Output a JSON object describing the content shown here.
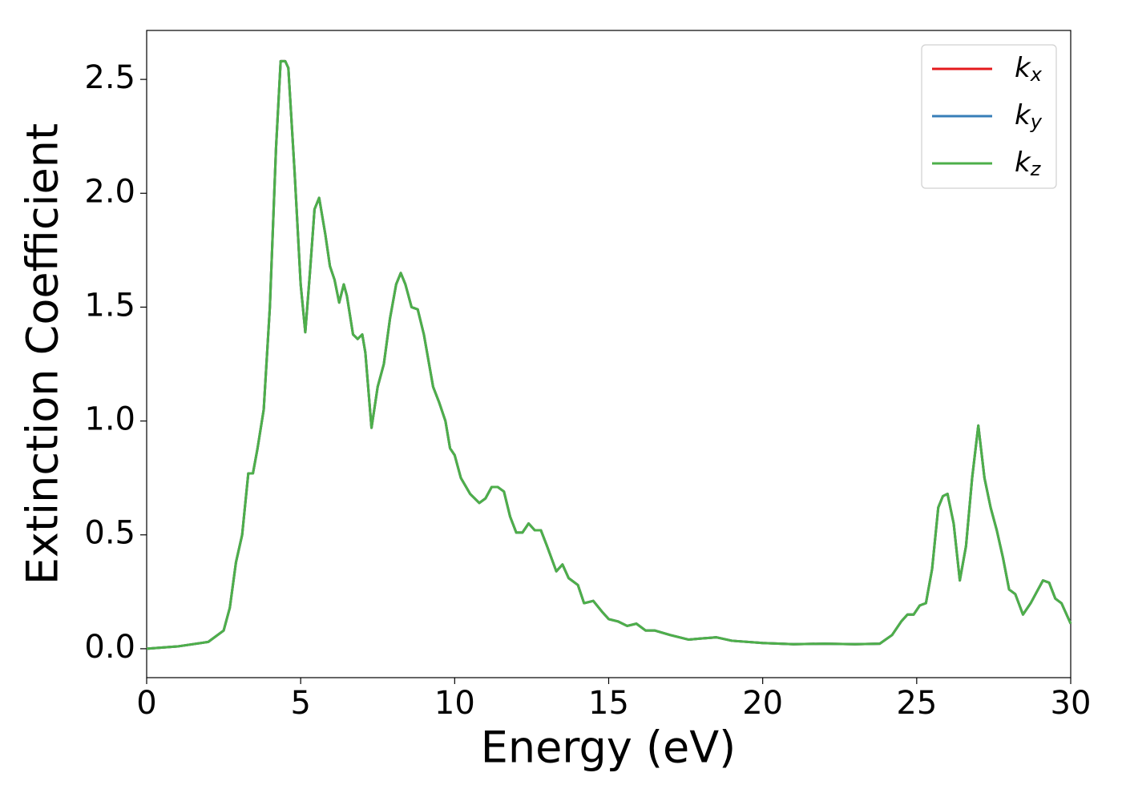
{
  "chart_data": {
    "type": "line",
    "xlabel": "Energy (eV)",
    "ylabel": "Extinction Coefficient",
    "x": [
      0,
      1,
      2,
      2.5,
      2.7,
      2.9,
      3.1,
      3.3,
      3.45,
      3.6,
      3.8,
      4.0,
      4.2,
      4.35,
      4.5,
      4.6,
      4.8,
      5.0,
      5.15,
      5.3,
      5.45,
      5.6,
      5.8,
      5.95,
      6.1,
      6.25,
      6.4,
      6.5,
      6.7,
      6.85,
      7.0,
      7.1,
      7.3,
      7.5,
      7.7,
      7.9,
      8.1,
      8.25,
      8.4,
      8.6,
      8.8,
      9.0,
      9.3,
      9.5,
      9.7,
      9.85,
      10.0,
      10.2,
      10.5,
      10.8,
      11.0,
      11.2,
      11.4,
      11.6,
      11.8,
      12.0,
      12.2,
      12.4,
      12.6,
      12.8,
      13.0,
      13.3,
      13.5,
      13.7,
      14.0,
      14.2,
      14.5,
      14.8,
      15.0,
      15.3,
      15.6,
      15.9,
      16.2,
      16.5,
      17.0,
      17.3,
      17.6,
      18.0,
      18.5,
      19.0,
      20.0,
      21.0,
      22.0,
      23.0,
      23.8,
      24.2,
      24.5,
      24.7,
      24.9,
      25.1,
      25.3,
      25.5,
      25.7,
      25.85,
      26.0,
      26.2,
      26.4,
      26.6,
      26.8,
      27.0,
      27.2,
      27.4,
      27.6,
      27.8,
      28.0,
      28.2,
      28.45,
      28.7,
      28.9,
      29.1,
      29.3,
      29.5,
      29.7,
      30.0
    ],
    "series": [
      {
        "name": "kx",
        "color": "#e41a1c",
        "values": [
          0,
          0.01,
          0.03,
          0.08,
          0.18,
          0.38,
          0.5,
          0.77,
          0.77,
          0.88,
          1.05,
          1.5,
          2.2,
          2.58,
          2.58,
          2.55,
          2.1,
          1.6,
          1.39,
          1.65,
          1.93,
          1.98,
          1.82,
          1.68,
          1.62,
          1.52,
          1.6,
          1.55,
          1.38,
          1.36,
          1.38,
          1.3,
          0.97,
          1.15,
          1.25,
          1.45,
          1.6,
          1.65,
          1.6,
          1.5,
          1.49,
          1.38,
          1.15,
          1.08,
          1.0,
          0.88,
          0.85,
          0.75,
          0.68,
          0.64,
          0.66,
          0.71,
          0.71,
          0.69,
          0.58,
          0.51,
          0.51,
          0.55,
          0.52,
          0.52,
          0.45,
          0.34,
          0.37,
          0.31,
          0.28,
          0.2,
          0.21,
          0.16,
          0.13,
          0.12,
          0.1,
          0.11,
          0.08,
          0.08,
          0.06,
          0.05,
          0.04,
          0.045,
          0.05,
          0.035,
          0.025,
          0.02,
          0.022,
          0.02,
          0.022,
          0.06,
          0.12,
          0.15,
          0.15,
          0.19,
          0.2,
          0.35,
          0.62,
          0.67,
          0.68,
          0.55,
          0.3,
          0.45,
          0.75,
          0.98,
          0.75,
          0.62,
          0.52,
          0.4,
          0.26,
          0.24,
          0.15,
          0.2,
          0.25,
          0.3,
          0.29,
          0.22,
          0.2,
          0.11
        ]
      },
      {
        "name": "ky",
        "color": "#377eb8",
        "values": [
          0,
          0.01,
          0.03,
          0.08,
          0.18,
          0.38,
          0.5,
          0.77,
          0.77,
          0.88,
          1.05,
          1.5,
          2.2,
          2.58,
          2.58,
          2.55,
          2.1,
          1.6,
          1.39,
          1.65,
          1.93,
          1.98,
          1.82,
          1.68,
          1.62,
          1.52,
          1.6,
          1.55,
          1.38,
          1.36,
          1.38,
          1.3,
          0.97,
          1.15,
          1.25,
          1.45,
          1.6,
          1.65,
          1.6,
          1.5,
          1.49,
          1.38,
          1.15,
          1.08,
          1.0,
          0.88,
          0.85,
          0.75,
          0.68,
          0.64,
          0.66,
          0.71,
          0.71,
          0.69,
          0.58,
          0.51,
          0.51,
          0.55,
          0.52,
          0.52,
          0.45,
          0.34,
          0.37,
          0.31,
          0.28,
          0.2,
          0.21,
          0.16,
          0.13,
          0.12,
          0.1,
          0.11,
          0.08,
          0.08,
          0.06,
          0.05,
          0.04,
          0.045,
          0.05,
          0.035,
          0.025,
          0.02,
          0.022,
          0.02,
          0.022,
          0.06,
          0.12,
          0.15,
          0.15,
          0.19,
          0.2,
          0.35,
          0.62,
          0.67,
          0.68,
          0.55,
          0.3,
          0.45,
          0.75,
          0.98,
          0.75,
          0.62,
          0.52,
          0.4,
          0.26,
          0.24,
          0.15,
          0.2,
          0.25,
          0.3,
          0.29,
          0.22,
          0.2,
          0.11
        ]
      },
      {
        "name": "kz",
        "color": "#4daf4a",
        "values": [
          0,
          0.01,
          0.03,
          0.08,
          0.18,
          0.38,
          0.5,
          0.77,
          0.77,
          0.88,
          1.05,
          1.5,
          2.2,
          2.58,
          2.58,
          2.55,
          2.1,
          1.6,
          1.39,
          1.65,
          1.93,
          1.98,
          1.82,
          1.68,
          1.62,
          1.52,
          1.6,
          1.55,
          1.38,
          1.36,
          1.38,
          1.3,
          0.97,
          1.15,
          1.25,
          1.45,
          1.6,
          1.65,
          1.6,
          1.5,
          1.49,
          1.38,
          1.15,
          1.08,
          1.0,
          0.88,
          0.85,
          0.75,
          0.68,
          0.64,
          0.66,
          0.71,
          0.71,
          0.69,
          0.58,
          0.51,
          0.51,
          0.55,
          0.52,
          0.52,
          0.45,
          0.34,
          0.37,
          0.31,
          0.28,
          0.2,
          0.21,
          0.16,
          0.13,
          0.12,
          0.1,
          0.11,
          0.08,
          0.08,
          0.06,
          0.05,
          0.04,
          0.045,
          0.05,
          0.035,
          0.025,
          0.02,
          0.022,
          0.02,
          0.022,
          0.06,
          0.12,
          0.15,
          0.15,
          0.19,
          0.2,
          0.35,
          0.62,
          0.67,
          0.68,
          0.55,
          0.3,
          0.45,
          0.75,
          0.98,
          0.75,
          0.62,
          0.52,
          0.4,
          0.26,
          0.24,
          0.15,
          0.2,
          0.25,
          0.3,
          0.29,
          0.22,
          0.2,
          0.11
        ]
      }
    ],
    "xlim": [
      0,
      30
    ],
    "xticks": [
      0,
      5,
      10,
      15,
      20,
      25,
      30
    ],
    "ylim": [
      -0.127,
      2.715
    ],
    "yticks": [
      {
        "value": 0,
        "label": "0.0"
      },
      {
        "value": 0.5,
        "label": "0.5"
      },
      {
        "value": 1,
        "label": "1.0"
      },
      {
        "value": 1.5,
        "label": "1.5"
      },
      {
        "value": 2,
        "label": "2.0"
      },
      {
        "value": 2.5,
        "label": "2.5"
      }
    ],
    "legend": "upper right",
    "grid": false
  }
}
